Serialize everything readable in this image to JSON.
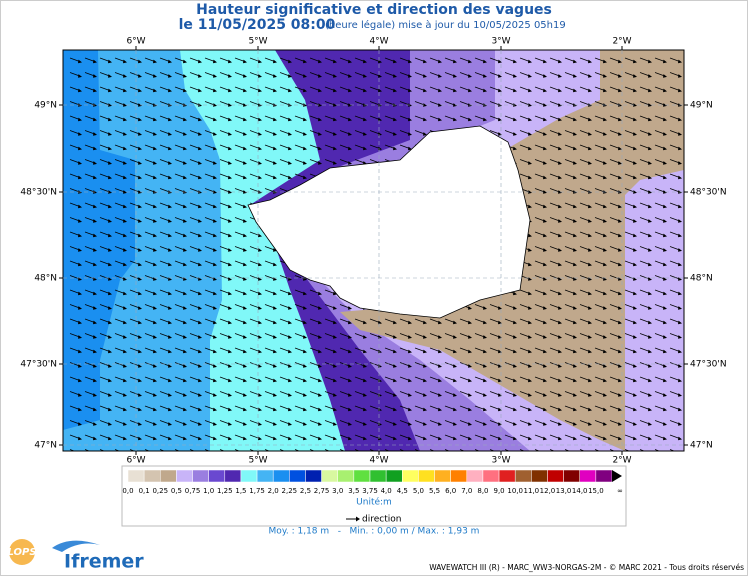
{
  "header": {
    "title": "Hauteur significative et direction des vagues",
    "datetime": "le 11/05/2025 08:00",
    "update_note": "(heure légale) mise à jour du 10/05/2025 05h19"
  },
  "map": {
    "longitude_labels": [
      "6°W",
      "5°W",
      "4°W",
      "3°W",
      "2°W"
    ],
    "latitude_labels": [
      "49°N",
      "48°30'N",
      "48°N",
      "47°30'N",
      "47°N"
    ]
  },
  "legend": {
    "labels": [
      "0,0",
      "0,1",
      "0,25",
      "0,5",
      "0,75",
      "1,0",
      "1,25",
      "1,5",
      "1,75",
      "2,0",
      "2,25",
      "2,5",
      "2,75",
      "3,0",
      "3,5",
      "3,75",
      "4,0",
      "4,5",
      "5,0",
      "5,5",
      "6,0",
      "7,0",
      "8,0",
      "9,0",
      "10,0",
      "11,0",
      "12,0",
      "13,0",
      "14,0",
      "15,0",
      "∞"
    ],
    "colors": [
      "#e8e0d4",
      "#d4c4b0",
      "#c0a88c",
      "#c8b4f8",
      "#9a7ee0",
      "#6a48d0",
      "#5028b0",
      "#80f8f8",
      "#44b4f4",
      "#1a8ff0",
      "#0050e0",
      "#0020b0",
      "#d8f8a0",
      "#a8f070",
      "#60e040",
      "#30c030",
      "#10a020",
      "#ffff60",
      "#ffe020",
      "#ffb020",
      "#ff8000",
      "#ffb0c0",
      "#ff7080",
      "#e02020",
      "#a06030",
      "#803000",
      "#c00000",
      "#800000",
      "#e000c0",
      "#800080"
    ],
    "unit": "Unité:m",
    "arrow_label": "direction",
    "stats": "Moy. : 1,18 m   -   Min. : 0,00 m / Max. : 1,93 m"
  },
  "footer": {
    "credit": "WAVEWATCH III (R) - MARC_WW3-NORGAS-2M - © MARC 2021 - Tous droits réservés",
    "logos": [
      "LOPS",
      "Ifremer"
    ]
  }
}
